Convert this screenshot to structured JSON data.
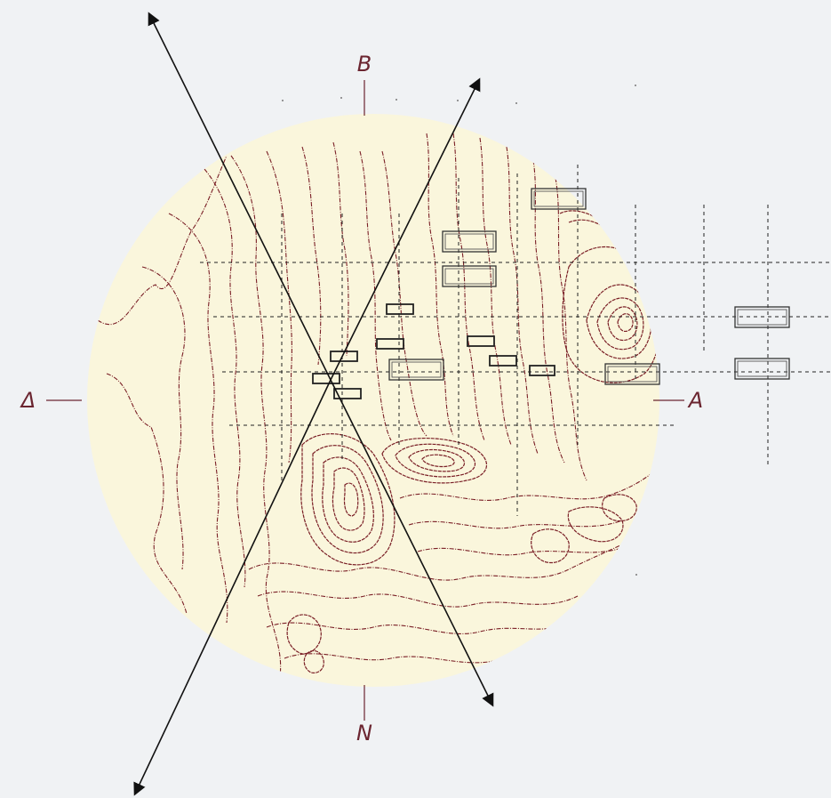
{
  "compass": {
    "north_label": "B",
    "south_label": "N",
    "east_label": "A",
    "west_label": "Δ"
  },
  "colors": {
    "disc_fill": "#faf6dc",
    "contour": "#7a1f26",
    "label": "#6b2530",
    "background": "#f0f2f4"
  }
}
